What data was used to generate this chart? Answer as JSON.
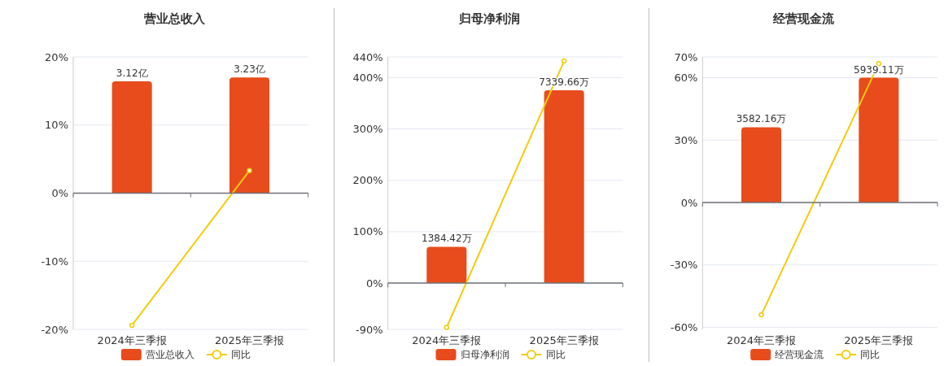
{
  "chart_data": [
    {
      "type": "bar",
      "title": "营业总收入",
      "categories": [
        "2024年三季报",
        "2025年三季报"
      ],
      "ylim": [
        -20,
        20
      ],
      "yticks": [
        {
          "value": -20,
          "label": "-20%"
        },
        {
          "value": -10,
          "label": "-10%"
        },
        {
          "value": 0,
          "label": "0%"
        },
        {
          "value": 10,
          "label": "10%"
        },
        {
          "value": 20,
          "label": "20%"
        }
      ],
      "y2lim": [
        -3.8,
        3.8
      ],
      "grid": "y",
      "legend": "bottom",
      "marker": "circle",
      "series": [
        {
          "name": "营业总收入",
          "axis": "y2",
          "color": "#e84c1c",
          "values": [
            3.12,
            3.23
          ],
          "value_labels": [
            "3.12亿",
            "3.23亿"
          ]
        },
        {
          "name": "同比",
          "type": "line",
          "color": "#f2cc0c",
          "values": [
            -19.4,
            3.3
          ]
        }
      ]
    },
    {
      "type": "bar",
      "title": "归母净利润",
      "categories": [
        "2024年三季报",
        "2025年三季报"
      ],
      "ylim": [
        -90,
        440
      ],
      "yticks": [
        {
          "value": -90,
          "label": "-90%"
        },
        {
          "value": 0,
          "label": "0%"
        },
        {
          "value": 100,
          "label": "100%"
        },
        {
          "value": 200,
          "label": "200%"
        },
        {
          "value": 300,
          "label": "300%"
        },
        {
          "value": 400,
          "label": "400%"
        },
        {
          "value": 440,
          "label": "440%"
        }
      ],
      "y2lim": [
        -1761,
        8611
      ],
      "grid": "y",
      "legend": "bottom",
      "marker": "circle",
      "series": [
        {
          "name": "归母净利润",
          "axis": "y2",
          "color": "#e84c1c",
          "values": [
            1384.42,
            7339.66
          ],
          "value_labels": [
            "1384.42万",
            "7339.66万"
          ]
        },
        {
          "name": "同比",
          "type": "line",
          "color": "#f2cc0c",
          "values": [
            -86,
            432
          ]
        }
      ]
    },
    {
      "type": "bar",
      "title": "经营现金流",
      "categories": [
        "2024年三季报",
        "2025年三季报"
      ],
      "ylim": [
        -61,
        70
      ],
      "yticks": [
        {
          "value": -60,
          "label": "-60%"
        },
        {
          "value": -30,
          "label": "-30%"
        },
        {
          "value": 0,
          "label": "0%"
        },
        {
          "value": 30,
          "label": "30%"
        },
        {
          "value": 60,
          "label": "60%"
        },
        {
          "value": 70,
          "label": "70%"
        }
      ],
      "y2lim": [
        -6040,
        6930
      ],
      "grid": "y",
      "legend": "bottom",
      "marker": "circle",
      "series": [
        {
          "name": "经营现金流",
          "axis": "y2",
          "color": "#e84c1c",
          "values": [
            3582.16,
            5939.11
          ],
          "value_labels": [
            "3582.16万",
            "5939.11万"
          ]
        },
        {
          "name": "同比",
          "type": "line",
          "color": "#f2cc0c",
          "values": [
            -54,
            66.8
          ]
        }
      ]
    }
  ]
}
